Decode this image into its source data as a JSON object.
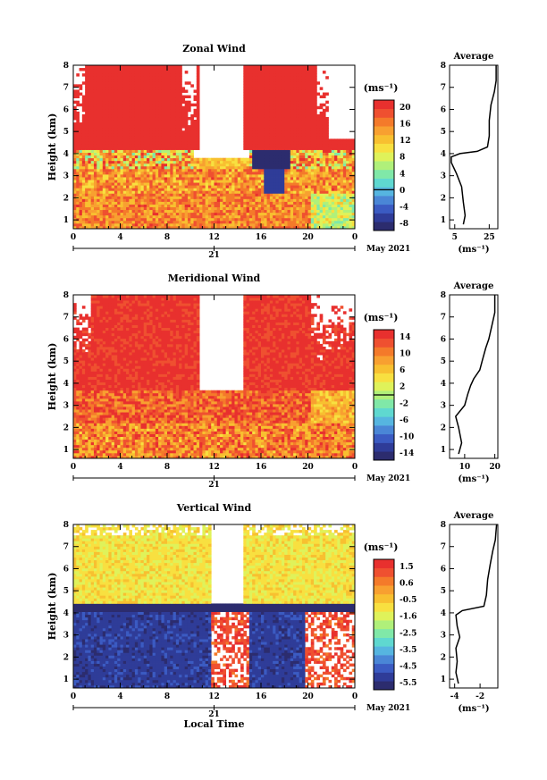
{
  "chart_data": [
    {
      "type": "heatmap",
      "title": "Zonal Wind",
      "ylabel": "Height (km)",
      "ylim": [
        0.6,
        8
      ],
      "yticks": [
        "1",
        "2",
        "3",
        "4",
        "5",
        "6",
        "7",
        "8"
      ],
      "xlim": [
        0,
        24
      ],
      "xticks": [
        "0",
        "4",
        "8",
        "12",
        "16",
        "20",
        "0"
      ],
      "date_tick": "21",
      "date_label": "May 2021",
      "colorbar": {
        "unit": "(ms⁻¹)",
        "ticks": [
          "20",
          "16",
          "12",
          "8",
          "4",
          "0",
          "-4",
          "-8"
        ],
        "vmin": -10,
        "vmax": 22,
        "zero_line": 0,
        "colors": [
          "#2c2c6e",
          "#2f3c98",
          "#3b5bc2",
          "#4a86d6",
          "#56b5e0",
          "#5fd8d0",
          "#80e8a8",
          "#b0f07a",
          "#dff25a",
          "#f8e040",
          "#f8c030",
          "#f8a030",
          "#f47a2a",
          "#ef5030",
          "#e8302e"
        ]
      },
      "profile": {
        "title": "Average",
        "xlabel": "(ms⁻¹)",
        "xticks": [
          "5",
          "25"
        ],
        "xtick_values": [
          5,
          25
        ],
        "xlim": [
          2,
          30
        ],
        "yticks": [
          "1",
          "2",
          "3",
          "4",
          "5",
          "6",
          "7",
          "8"
        ],
        "points": [
          [
            10,
            0.8
          ],
          [
            11,
            1.2
          ],
          [
            10,
            1.8
          ],
          [
            9,
            2.5
          ],
          [
            6,
            3.1
          ],
          [
            3,
            3.6
          ],
          [
            3,
            3.85
          ],
          [
            8,
            4.0
          ],
          [
            18,
            4.1
          ],
          [
            24,
            4.3
          ],
          [
            25,
            4.8
          ],
          [
            25,
            5.5
          ],
          [
            26,
            6.2
          ],
          [
            28,
            6.8
          ],
          [
            29,
            7.3
          ],
          [
            29,
            8.0
          ]
        ]
      }
    },
    {
      "type": "heatmap",
      "title": "Meridional Wind",
      "ylabel": "Height (km)",
      "ylim": [
        0.6,
        8
      ],
      "yticks": [
        "1",
        "2",
        "3",
        "4",
        "5",
        "6",
        "7",
        "8"
      ],
      "xlim": [
        0,
        24
      ],
      "xticks": [
        "0",
        "4",
        "8",
        "12",
        "16",
        "20",
        "0"
      ],
      "date_tick": "21",
      "date_label": "May 2021",
      "colorbar": {
        "unit": "(ms⁻¹)",
        "ticks": [
          "14",
          "10",
          "6",
          "2",
          "-2",
          "-6",
          "-10",
          "-14"
        ],
        "vmin": -16,
        "vmax": 16,
        "zero_line": 0,
        "colors": [
          "#2c2c6e",
          "#2f3c98",
          "#3b5bc2",
          "#4a86d6",
          "#56b5e0",
          "#5fd8d0",
          "#80e8a8",
          "#b0f07a",
          "#dff25a",
          "#f8e040",
          "#f8c030",
          "#f8a030",
          "#f47a2a",
          "#ef5030",
          "#e8302e"
        ]
      },
      "profile": {
        "title": "Average",
        "xlabel": "(ms⁻¹)",
        "xticks": [
          "10",
          "20"
        ],
        "xtick_values": [
          10,
          20
        ],
        "xlim": [
          5,
          21
        ],
        "yticks": [
          "1",
          "2",
          "3",
          "4",
          "5",
          "6",
          "7",
          "8"
        ],
        "points": [
          [
            8,
            0.8
          ],
          [
            9,
            1.3
          ],
          [
            8,
            2.0
          ],
          [
            7,
            2.5
          ],
          [
            10,
            3.0
          ],
          [
            11,
            3.5
          ],
          [
            12,
            3.9
          ],
          [
            13,
            4.2
          ],
          [
            15,
            4.6
          ],
          [
            16,
            5.1
          ],
          [
            17,
            5.6
          ],
          [
            18,
            6.0
          ],
          [
            19,
            6.6
          ],
          [
            20,
            7.2
          ],
          [
            20,
            7.6
          ],
          [
            20,
            8.0
          ]
        ]
      }
    },
    {
      "type": "heatmap",
      "title": "Vertical Wind",
      "ylabel": "Height (km)",
      "xlabel": "Local Time",
      "ylim": [
        0.6,
        8
      ],
      "yticks": [
        "1",
        "2",
        "3",
        "4",
        "5",
        "6",
        "7",
        "8"
      ],
      "xlim": [
        0,
        24
      ],
      "xticks": [
        "0",
        "4",
        "8",
        "12",
        "16",
        "20",
        "0"
      ],
      "date_tick": "21",
      "date_label": "May 2021",
      "colorbar": {
        "unit": "(ms⁻¹)",
        "ticks": [
          "1.5",
          "0.6",
          "-0.5",
          "-1.6",
          "-2.5",
          "-3.5",
          "-4.5",
          "-5.5"
        ],
        "vmin": -6,
        "vmax": 2,
        "zero_line": null,
        "colors": [
          "#2c2c6e",
          "#2f3c98",
          "#3b5bc2",
          "#4a86d6",
          "#56b5e0",
          "#5fd8d0",
          "#80e8a8",
          "#b0f07a",
          "#dff25a",
          "#f8e040",
          "#f8c030",
          "#f8a030",
          "#f47a2a",
          "#ef5030",
          "#e8302e"
        ]
      },
      "profile": {
        "title": "Average",
        "xlabel": "(ms⁻¹)",
        "xticks": [
          "-4",
          "-2"
        ],
        "xtick_values": [
          -4,
          -2
        ],
        "xlim": [
          -4.4,
          -0.6
        ],
        "yticks": [
          "1",
          "2",
          "3",
          "4",
          "5",
          "6",
          "7",
          "8"
        ],
        "points": [
          [
            -3.7,
            0.8
          ],
          [
            -3.9,
            1.3
          ],
          [
            -3.8,
            1.8
          ],
          [
            -3.9,
            2.4
          ],
          [
            -3.6,
            2.9
          ],
          [
            -3.8,
            3.4
          ],
          [
            -3.9,
            3.9
          ],
          [
            -3.4,
            4.1
          ],
          [
            -1.7,
            4.3
          ],
          [
            -1.5,
            4.8
          ],
          [
            -1.4,
            5.5
          ],
          [
            -1.2,
            6.2
          ],
          [
            -1.0,
            6.8
          ],
          [
            -0.8,
            7.3
          ],
          [
            -0.7,
            8.0
          ]
        ]
      }
    }
  ]
}
